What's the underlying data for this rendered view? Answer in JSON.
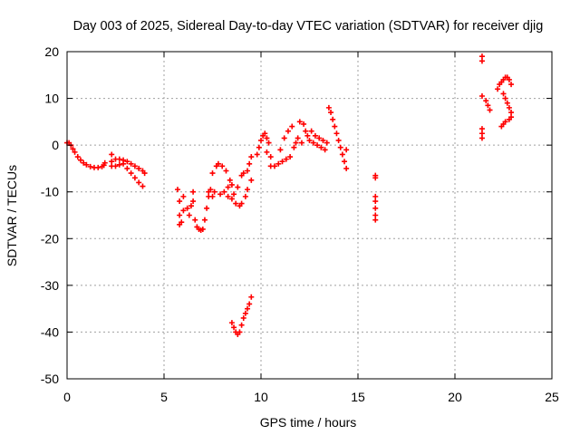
{
  "chart_data": {
    "type": "scatter",
    "title": "Day 003 of 2025, Sidereal Day-to-day VTEC variation (SDTVAR) for receiver djig",
    "xlabel": "GPS time / hours",
    "ylabel": "SDTVAR / TECUs",
    "xlim": [
      0,
      25
    ],
    "ylim": [
      -50,
      20
    ],
    "xticks": [
      "0",
      "5",
      "10",
      "15",
      "20",
      "25"
    ],
    "yticks": [
      "20",
      "10",
      "0",
      "-10",
      "-20",
      "-30",
      "-40",
      "-50"
    ],
    "grid": true,
    "marker": "+",
    "color": "#ff0000",
    "series": [
      {
        "points": [
          [
            0.0,
            0.5
          ],
          [
            0.1,
            0.5
          ],
          [
            0.2,
            0.0
          ],
          [
            0.3,
            -0.8
          ],
          [
            0.4,
            -1.5
          ],
          [
            0.55,
            -2.5
          ],
          [
            0.7,
            -3.2
          ],
          [
            0.85,
            -3.8
          ],
          [
            1.0,
            -4.2
          ],
          [
            1.2,
            -4.6
          ],
          [
            1.4,
            -4.8
          ],
          [
            1.6,
            -4.8
          ],
          [
            1.8,
            -4.6
          ],
          [
            1.9,
            -4.3
          ],
          [
            1.95,
            -3.8
          ]
        ]
      },
      {
        "points": [
          [
            2.3,
            -2.0
          ],
          [
            2.3,
            -3.5
          ],
          [
            2.3,
            -4.5
          ],
          [
            2.5,
            -3.0
          ],
          [
            2.5,
            -4.5
          ],
          [
            2.7,
            -3.0
          ],
          [
            2.7,
            -4.2
          ],
          [
            2.9,
            -3.2
          ],
          [
            2.9,
            -4.0
          ],
          [
            3.1,
            -3.5
          ],
          [
            3.1,
            -5.0
          ],
          [
            3.3,
            -4.0
          ],
          [
            3.3,
            -6.0
          ],
          [
            3.5,
            -4.5
          ],
          [
            3.5,
            -7.0
          ],
          [
            3.7,
            -5.0
          ],
          [
            3.7,
            -8.0
          ],
          [
            3.9,
            -5.5
          ],
          [
            3.9,
            -8.8
          ],
          [
            4.0,
            -6.0
          ]
        ]
      },
      {
        "points": [
          [
            5.7,
            -9.5
          ],
          [
            5.8,
            -12.0
          ],
          [
            5.8,
            -15.0
          ],
          [
            5.8,
            -17.0
          ],
          [
            5.9,
            -16.5
          ],
          [
            6.0,
            -14.0
          ],
          [
            6.0,
            -11.0
          ],
          [
            6.2,
            -13.5
          ],
          [
            6.3,
            -15.0
          ],
          [
            6.4,
            -13.0
          ],
          [
            6.5,
            -12.0
          ],
          [
            6.5,
            -10.0
          ],
          [
            6.6,
            -16.0
          ],
          [
            6.7,
            -17.5
          ],
          [
            6.8,
            -18.0
          ],
          [
            6.9,
            -18.2
          ],
          [
            7.0,
            -18.0
          ],
          [
            7.1,
            -16.0
          ],
          [
            7.2,
            -13.5
          ],
          [
            7.3,
            -10.0
          ],
          [
            7.3,
            -11.0
          ],
          [
            7.4,
            -9.5
          ],
          [
            7.5,
            -11.0
          ],
          [
            7.5,
            -6.0
          ],
          [
            7.6,
            -10.0
          ],
          [
            7.7,
            -4.5
          ],
          [
            7.8,
            -4.0
          ],
          [
            7.9,
            -10.5
          ],
          [
            8.0,
            -4.5
          ],
          [
            8.1,
            -10.0
          ],
          [
            8.2,
            -5.5
          ],
          [
            8.3,
            -9.0
          ],
          [
            8.3,
            -11.0
          ],
          [
            8.4,
            -7.5
          ],
          [
            8.5,
            -11.5
          ],
          [
            8.5,
            -8.5
          ],
          [
            8.6,
            -10.5
          ],
          [
            8.7,
            -12.5
          ],
          [
            8.8,
            -9.0
          ],
          [
            8.9,
            -13.0
          ],
          [
            9.0,
            -6.5
          ],
          [
            9.0,
            -12.5
          ],
          [
            9.1,
            -6.0
          ],
          [
            9.2,
            -11.0
          ],
          [
            9.3,
            -5.5
          ],
          [
            9.3,
            -9.5
          ],
          [
            9.4,
            -4.0
          ],
          [
            9.5,
            -7.5
          ],
          [
            9.5,
            -2.5
          ]
        ]
      },
      {
        "points": [
          [
            8.5,
            -38.0
          ],
          [
            8.6,
            -39.0
          ],
          [
            8.7,
            -40.0
          ],
          [
            8.8,
            -40.5
          ],
          [
            8.9,
            -40.0
          ],
          [
            9.0,
            -38.5
          ],
          [
            9.1,
            -37.0
          ],
          [
            9.2,
            -36.0
          ],
          [
            9.3,
            -35.0
          ],
          [
            9.4,
            -34.0
          ],
          [
            9.5,
            -32.5
          ]
        ]
      },
      {
        "points": [
          [
            9.8,
            -2.0
          ],
          [
            9.9,
            -0.5
          ],
          [
            10.0,
            1.0
          ],
          [
            10.1,
            2.0
          ],
          [
            10.2,
            2.5
          ],
          [
            10.3,
            1.5
          ],
          [
            10.3,
            -1.5
          ],
          [
            10.4,
            0.5
          ],
          [
            10.5,
            -2.5
          ],
          [
            10.5,
            -4.5
          ],
          [
            10.7,
            -4.5
          ],
          [
            10.9,
            -4.0
          ],
          [
            11.0,
            -1.0
          ],
          [
            11.1,
            -3.5
          ],
          [
            11.2,
            1.5
          ],
          [
            11.3,
            -3.0
          ],
          [
            11.4,
            3.0
          ],
          [
            11.5,
            -2.5
          ],
          [
            11.6,
            4.0
          ],
          [
            11.7,
            -0.5
          ],
          [
            11.8,
            0.5
          ],
          [
            11.9,
            1.5
          ],
          [
            12.0,
            5.0
          ],
          [
            12.1,
            0.5
          ],
          [
            12.2,
            4.5
          ],
          [
            12.3,
            3.0
          ],
          [
            12.4,
            2.0
          ],
          [
            12.5,
            1.0
          ],
          [
            12.6,
            3.0
          ],
          [
            12.7,
            0.5
          ],
          [
            12.8,
            2.0
          ],
          [
            12.9,
            0.0
          ],
          [
            13.0,
            1.5
          ],
          [
            13.1,
            -0.5
          ],
          [
            13.2,
            1.0
          ],
          [
            13.3,
            -1.0
          ],
          [
            13.4,
            0.5
          ],
          [
            13.5,
            8.0
          ],
          [
            13.6,
            7.0
          ],
          [
            13.7,
            5.5
          ],
          [
            13.8,
            4.0
          ],
          [
            13.9,
            2.5
          ],
          [
            14.0,
            1.0
          ],
          [
            14.1,
            -0.5
          ],
          [
            14.2,
            -2.0
          ],
          [
            14.3,
            -3.5
          ],
          [
            14.4,
            -5.0
          ],
          [
            14.4,
            -1.0
          ]
        ]
      },
      {
        "points": [
          [
            15.9,
            -6.5
          ],
          [
            15.9,
            -7.0
          ],
          [
            15.9,
            -11.0
          ],
          [
            15.9,
            -12.0
          ],
          [
            15.9,
            -13.5
          ],
          [
            15.9,
            -15.0
          ],
          [
            15.9,
            -16.0
          ]
        ]
      },
      {
        "points": [
          [
            21.4,
            19.0
          ],
          [
            21.4,
            18.0
          ],
          [
            21.4,
            10.5
          ],
          [
            21.4,
            3.5
          ],
          [
            21.4,
            2.5
          ],
          [
            21.4,
            1.5
          ],
          [
            21.6,
            9.5
          ],
          [
            21.7,
            8.5
          ],
          [
            21.8,
            7.5
          ],
          [
            22.2,
            12.0
          ],
          [
            22.3,
            13.0
          ],
          [
            22.4,
            13.5
          ],
          [
            22.5,
            14.0
          ],
          [
            22.6,
            14.5
          ],
          [
            22.7,
            14.5
          ],
          [
            22.8,
            14.0
          ],
          [
            22.9,
            13.0
          ],
          [
            22.5,
            11.0
          ],
          [
            22.6,
            10.0
          ],
          [
            22.7,
            9.0
          ],
          [
            22.8,
            8.0
          ],
          [
            22.9,
            7.0
          ],
          [
            22.9,
            6.0
          ],
          [
            22.8,
            5.5
          ],
          [
            22.6,
            5.0
          ],
          [
            22.5,
            4.5
          ],
          [
            22.4,
            4.0
          ]
        ]
      }
    ]
  }
}
